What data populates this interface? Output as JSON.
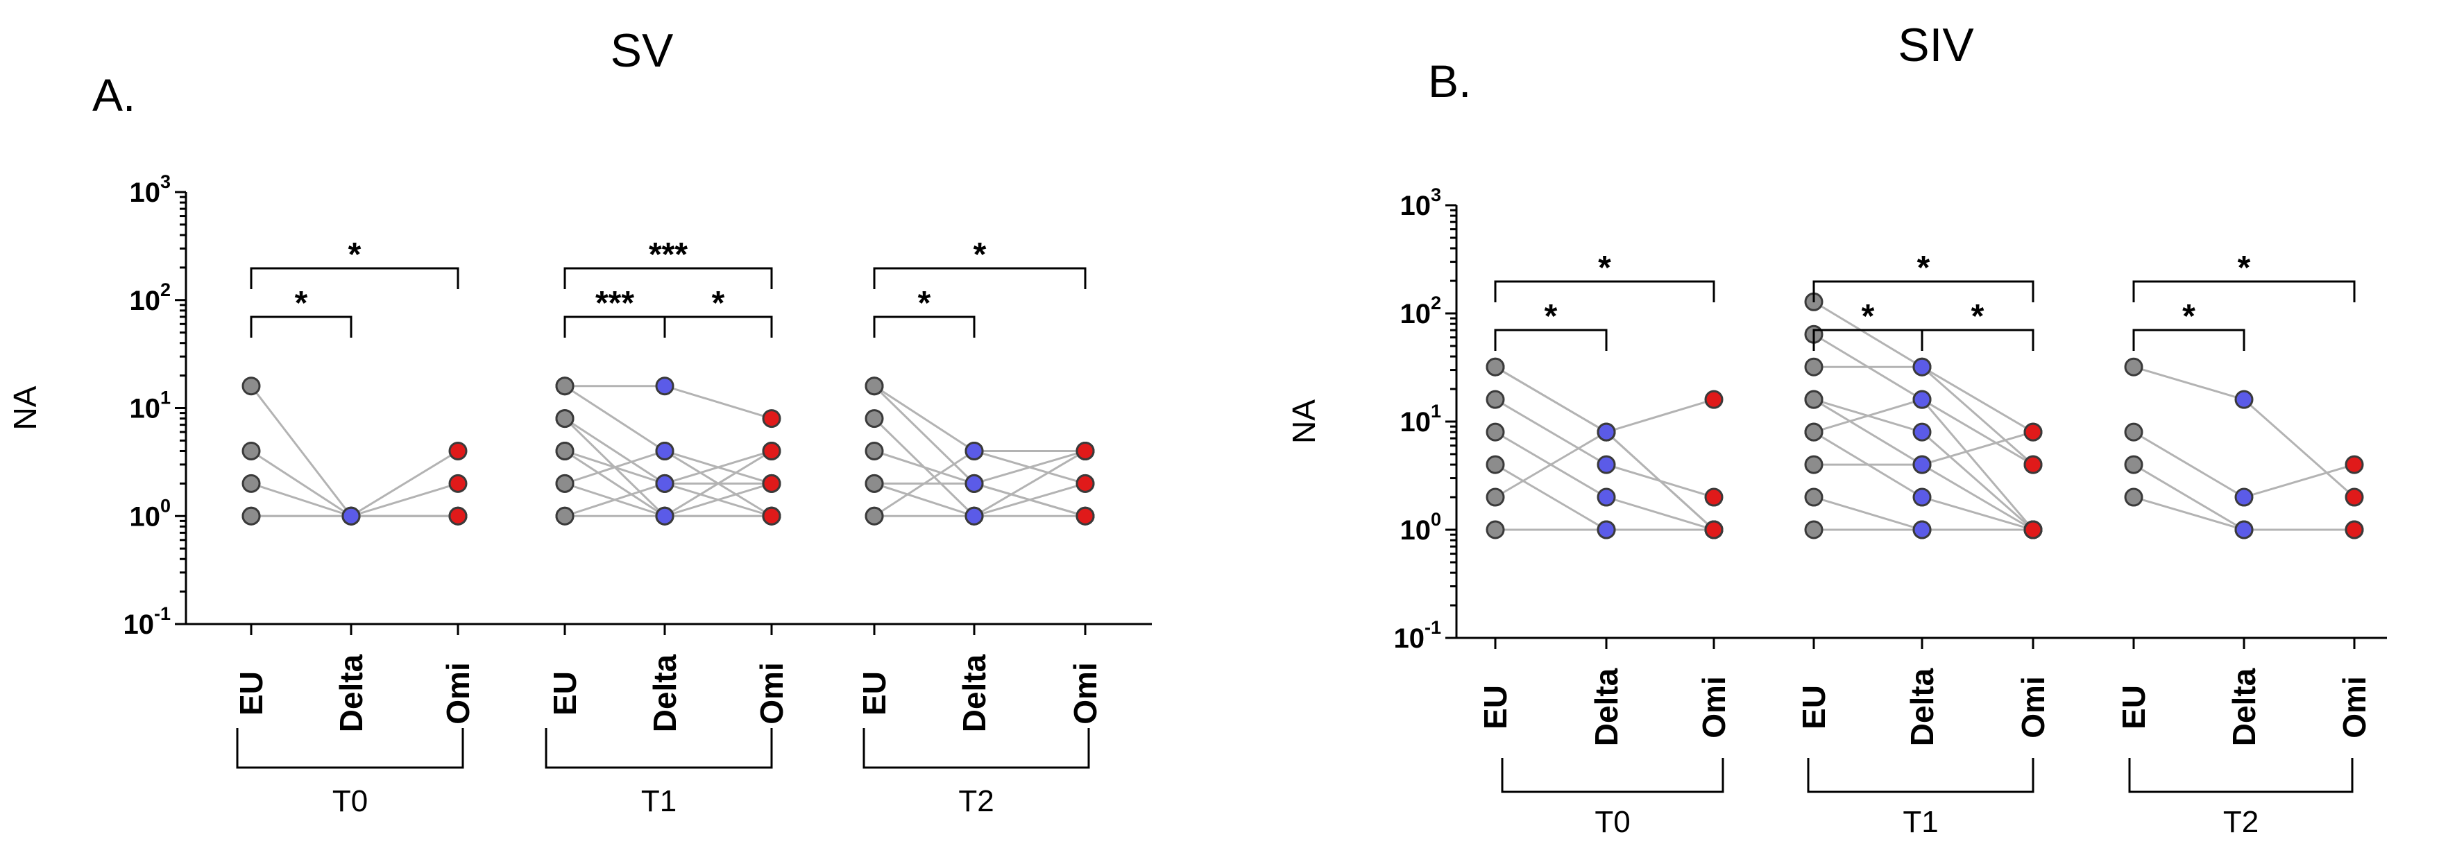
{
  "chart_data": [
    {
      "type": "scatter",
      "panel_letter": "A.",
      "title": "SV",
      "ylabel": "NA",
      "yscale": "log10",
      "ylim": [
        0.1,
        1000
      ],
      "y_ticks": [
        {
          "base": "10",
          "exp": "3"
        },
        {
          "base": "10",
          "exp": "2"
        },
        {
          "base": "10",
          "exp": "1"
        },
        {
          "base": "10",
          "exp": "0"
        },
        {
          "base": "10",
          "exp": "-1"
        }
      ],
      "groups": [
        {
          "name": "T0",
          "categories": [
            "EU",
            "Delta",
            "Omi"
          ],
          "paired_values": [
            [
              16,
              1,
              1
            ],
            [
              4,
              1,
              1
            ],
            [
              2,
              1,
              4
            ],
            [
              1,
              1,
              2
            ],
            [
              1,
              1,
              1
            ]
          ],
          "significance": [
            {
              "from": "EU",
              "to": "Delta",
              "label": "*"
            },
            {
              "from": "EU",
              "to": "Omi",
              "label": "*"
            }
          ]
        },
        {
          "name": "T1",
          "categories": [
            "EU",
            "Delta",
            "Omi"
          ],
          "paired_values": [
            [
              16,
              16,
              8
            ],
            [
              16,
              4,
              2
            ],
            [
              8,
              2,
              4
            ],
            [
              8,
              1,
              1
            ],
            [
              4,
              2,
              2
            ],
            [
              4,
              1,
              1
            ],
            [
              2,
              1,
              4
            ],
            [
              2,
              4,
              1
            ],
            [
              1,
              1,
              2
            ],
            [
              1,
              2,
              1
            ]
          ],
          "significance": [
            {
              "from": "EU",
              "to": "Delta",
              "label": "***"
            },
            {
              "from": "Delta",
              "to": "Omi",
              "label": "*"
            },
            {
              "from": "EU",
              "to": "Omi",
              "label": "***"
            }
          ]
        },
        {
          "name": "T2",
          "categories": [
            "EU",
            "Delta",
            "Omi"
          ],
          "paired_values": [
            [
              16,
              4,
              2
            ],
            [
              16,
              2,
              4
            ],
            [
              8,
              1,
              2
            ],
            [
              4,
              2,
              1
            ],
            [
              2,
              1,
              4
            ],
            [
              2,
              2,
              1
            ],
            [
              1,
              1,
              1
            ],
            [
              1,
              4,
              4
            ]
          ],
          "significance": [
            {
              "from": "EU",
              "to": "Delta",
              "label": "*"
            },
            {
              "from": "EU",
              "to": "Omi",
              "label": "*"
            }
          ]
        }
      ]
    },
    {
      "type": "scatter",
      "panel_letter": "B.",
      "title": "SIV",
      "ylabel": "NA",
      "yscale": "log10",
      "ylim": [
        0.1,
        1000
      ],
      "y_ticks": [
        {
          "base": "10",
          "exp": "3"
        },
        {
          "base": "10",
          "exp": "2"
        },
        {
          "base": "10",
          "exp": "1"
        },
        {
          "base": "10",
          "exp": "0"
        },
        {
          "base": "10",
          "exp": "-1"
        }
      ],
      "groups": [
        {
          "name": "T0",
          "categories": [
            "EU",
            "Delta",
            "Omi"
          ],
          "paired_values": [
            [
              32,
              8,
              1
            ],
            [
              32,
              8,
              1
            ],
            [
              16,
              4,
              2
            ],
            [
              8,
              2,
              1
            ],
            [
              4,
              1,
              1
            ],
            [
              2,
              8,
              16
            ],
            [
              1,
              1,
              1
            ]
          ],
          "significance": [
            {
              "from": "EU",
              "to": "Delta",
              "label": "*"
            },
            {
              "from": "EU",
              "to": "Omi",
              "label": "*"
            }
          ]
        },
        {
          "name": "T1",
          "categories": [
            "EU",
            "Delta",
            "Omi"
          ],
          "paired_values": [
            [
              128,
              32,
              8
            ],
            [
              64,
              16,
              4
            ],
            [
              32,
              32,
              4
            ],
            [
              16,
              8,
              1
            ],
            [
              16,
              4,
              8
            ],
            [
              8,
              16,
              1
            ],
            [
              8,
              2,
              1
            ],
            [
              4,
              4,
              1
            ],
            [
              2,
              1,
              1
            ],
            [
              1,
              1,
              1
            ]
          ],
          "significance": [
            {
              "from": "EU",
              "to": "Delta",
              "label": "*"
            },
            {
              "from": "Delta",
              "to": "Omi",
              "label": "*"
            },
            {
              "from": "EU",
              "to": "Omi",
              "label": "*"
            }
          ]
        },
        {
          "name": "T2",
          "categories": [
            "EU",
            "Delta",
            "Omi"
          ],
          "paired_values": [
            [
              32,
              16,
              2
            ],
            [
              8,
              2,
              4
            ],
            [
              4,
              1,
              1
            ],
            [
              2,
              1,
              1
            ]
          ],
          "significance": [
            {
              "from": "EU",
              "to": "Delta",
              "label": "*"
            },
            {
              "from": "EU",
              "to": "Omi",
              "label": "*"
            }
          ]
        }
      ]
    }
  ],
  "colors": {
    "EU": "#8c8c8c",
    "Delta": "#5b5be8",
    "Omi": "#e01a1a",
    "line": "#b3b3b3"
  }
}
